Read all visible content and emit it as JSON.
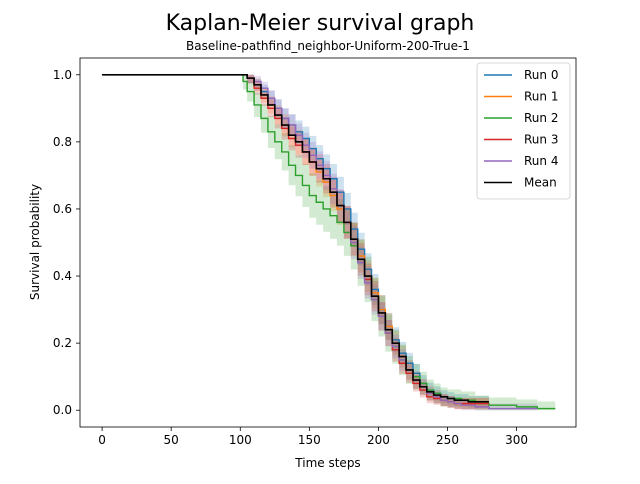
{
  "chart_data": {
    "type": "line",
    "title": "Kaplan-Meier survival graph",
    "subtitle": "Baseline-pathfind_neighbor-Uniform-200-True-1",
    "xlabel": "Time steps",
    "ylabel": "Survival probability",
    "xlim": [
      -16,
      343
    ],
    "ylim": [
      -0.05,
      1.05
    ],
    "xticks": [
      0,
      50,
      100,
      150,
      200,
      250,
      300
    ],
    "yticks": [
      0.0,
      0.2,
      0.4,
      0.6,
      0.8,
      1.0
    ],
    "xtick_labels": [
      "0",
      "50",
      "100",
      "150",
      "200",
      "250",
      "300"
    ],
    "ytick_labels": [
      "0.0",
      "0.2",
      "0.4",
      "0.6",
      "0.8",
      "1.0"
    ],
    "grid": false,
    "legend_position": "top-right",
    "series": [
      {
        "name": "Run 0",
        "color": "#1f77b4",
        "x": [
          0,
          100,
          105,
          110,
          115,
          120,
          125,
          130,
          135,
          140,
          145,
          150,
          155,
          160,
          165,
          170,
          175,
          180,
          185,
          190,
          195,
          200,
          205,
          210,
          215,
          220,
          225,
          230,
          235,
          240,
          245,
          250,
          255,
          260,
          265,
          270,
          280
        ],
        "y": [
          1.0,
          1.0,
          0.99,
          0.97,
          0.95,
          0.93,
          0.9,
          0.87,
          0.85,
          0.83,
          0.81,
          0.78,
          0.75,
          0.72,
          0.69,
          0.65,
          0.6,
          0.54,
          0.48,
          0.42,
          0.36,
          0.3,
          0.25,
          0.21,
          0.17,
          0.14,
          0.11,
          0.08,
          0.06,
          0.05,
          0.04,
          0.035,
          0.03,
          0.03,
          0.025,
          0.025,
          0.025
        ]
      },
      {
        "name": "Run 1",
        "color": "#ff7f0e",
        "x": [
          0,
          100,
          105,
          110,
          115,
          120,
          125,
          130,
          135,
          140,
          145,
          150,
          155,
          160,
          165,
          170,
          175,
          180,
          185,
          190,
          195,
          200,
          205,
          210,
          215,
          220,
          225,
          230,
          235,
          240,
          245,
          250,
          255,
          260,
          265,
          270,
          280
        ],
        "y": [
          1.0,
          1.0,
          0.99,
          0.97,
          0.94,
          0.91,
          0.88,
          0.85,
          0.82,
          0.8,
          0.77,
          0.74,
          0.71,
          0.68,
          0.64,
          0.6,
          0.56,
          0.51,
          0.46,
          0.4,
          0.35,
          0.3,
          0.25,
          0.2,
          0.16,
          0.12,
          0.09,
          0.07,
          0.05,
          0.04,
          0.03,
          0.025,
          0.02,
          0.02,
          0.02,
          0.02,
          0.02
        ]
      },
      {
        "name": "Run 2",
        "color": "#2ca02c",
        "x": [
          0,
          100,
          102,
          105,
          110,
          115,
          120,
          125,
          130,
          135,
          140,
          145,
          150,
          155,
          160,
          165,
          170,
          175,
          180,
          185,
          190,
          195,
          200,
          205,
          210,
          215,
          220,
          225,
          230,
          235,
          240,
          245,
          250,
          260,
          270,
          280,
          300,
          315,
          328
        ],
        "y": [
          1.0,
          1.0,
          0.98,
          0.95,
          0.91,
          0.87,
          0.83,
          0.8,
          0.77,
          0.73,
          0.7,
          0.67,
          0.64,
          0.62,
          0.6,
          0.58,
          0.56,
          0.53,
          0.49,
          0.44,
          0.39,
          0.33,
          0.28,
          0.23,
          0.19,
          0.15,
          0.12,
          0.1,
          0.08,
          0.06,
          0.05,
          0.04,
          0.035,
          0.03,
          0.02,
          0.015,
          0.01,
          0.005,
          0.005
        ]
      },
      {
        "name": "Run 3",
        "color": "#d62728",
        "x": [
          0,
          100,
          105,
          110,
          115,
          120,
          125,
          130,
          135,
          140,
          145,
          150,
          155,
          160,
          165,
          170,
          175,
          180,
          185,
          190,
          195,
          200,
          205,
          210,
          215,
          220,
          225,
          230,
          235,
          240,
          245,
          250,
          255,
          260,
          265,
          270,
          280
        ],
        "y": [
          1.0,
          1.0,
          0.99,
          0.96,
          0.93,
          0.9,
          0.87,
          0.84,
          0.81,
          0.79,
          0.77,
          0.74,
          0.72,
          0.69,
          0.65,
          0.61,
          0.56,
          0.51,
          0.45,
          0.39,
          0.34,
          0.28,
          0.23,
          0.18,
          0.14,
          0.11,
          0.08,
          0.06,
          0.04,
          0.035,
          0.03,
          0.025,
          0.02,
          0.02,
          0.02,
          0.02,
          0.02
        ]
      },
      {
        "name": "Run 4",
        "color": "#9467bd",
        "x": [
          0,
          100,
          105,
          110,
          115,
          120,
          125,
          130,
          135,
          140,
          145,
          150,
          155,
          160,
          165,
          170,
          175,
          180,
          185,
          190,
          195,
          200,
          205,
          210,
          215,
          220,
          225,
          230,
          235,
          240,
          245,
          250,
          255,
          260,
          270,
          280,
          300,
          315
        ],
        "y": [
          1.0,
          1.0,
          0.99,
          0.98,
          0.96,
          0.93,
          0.9,
          0.87,
          0.85,
          0.82,
          0.79,
          0.76,
          0.73,
          0.7,
          0.66,
          0.61,
          0.56,
          0.5,
          0.44,
          0.38,
          0.33,
          0.28,
          0.23,
          0.19,
          0.15,
          0.12,
          0.09,
          0.07,
          0.05,
          0.04,
          0.03,
          0.025,
          0.02,
          0.015,
          0.01,
          0.005,
          0.005,
          0.005
        ]
      },
      {
        "name": "Mean",
        "color": "#000000",
        "x": [
          0,
          100,
          105,
          110,
          115,
          120,
          125,
          130,
          135,
          140,
          145,
          150,
          155,
          160,
          165,
          170,
          175,
          180,
          185,
          190,
          195,
          200,
          205,
          210,
          215,
          220,
          225,
          230,
          235,
          240,
          245,
          250,
          255,
          260,
          265,
          270,
          280
        ],
        "y": [
          1.0,
          1.0,
          0.99,
          0.97,
          0.94,
          0.91,
          0.88,
          0.85,
          0.82,
          0.8,
          0.77,
          0.74,
          0.72,
          0.69,
          0.65,
          0.61,
          0.56,
          0.51,
          0.45,
          0.4,
          0.34,
          0.29,
          0.24,
          0.2,
          0.16,
          0.12,
          0.09,
          0.07,
          0.055,
          0.045,
          0.04,
          0.035,
          0.03,
          0.03,
          0.025,
          0.025,
          0.025
        ]
      }
    ]
  }
}
